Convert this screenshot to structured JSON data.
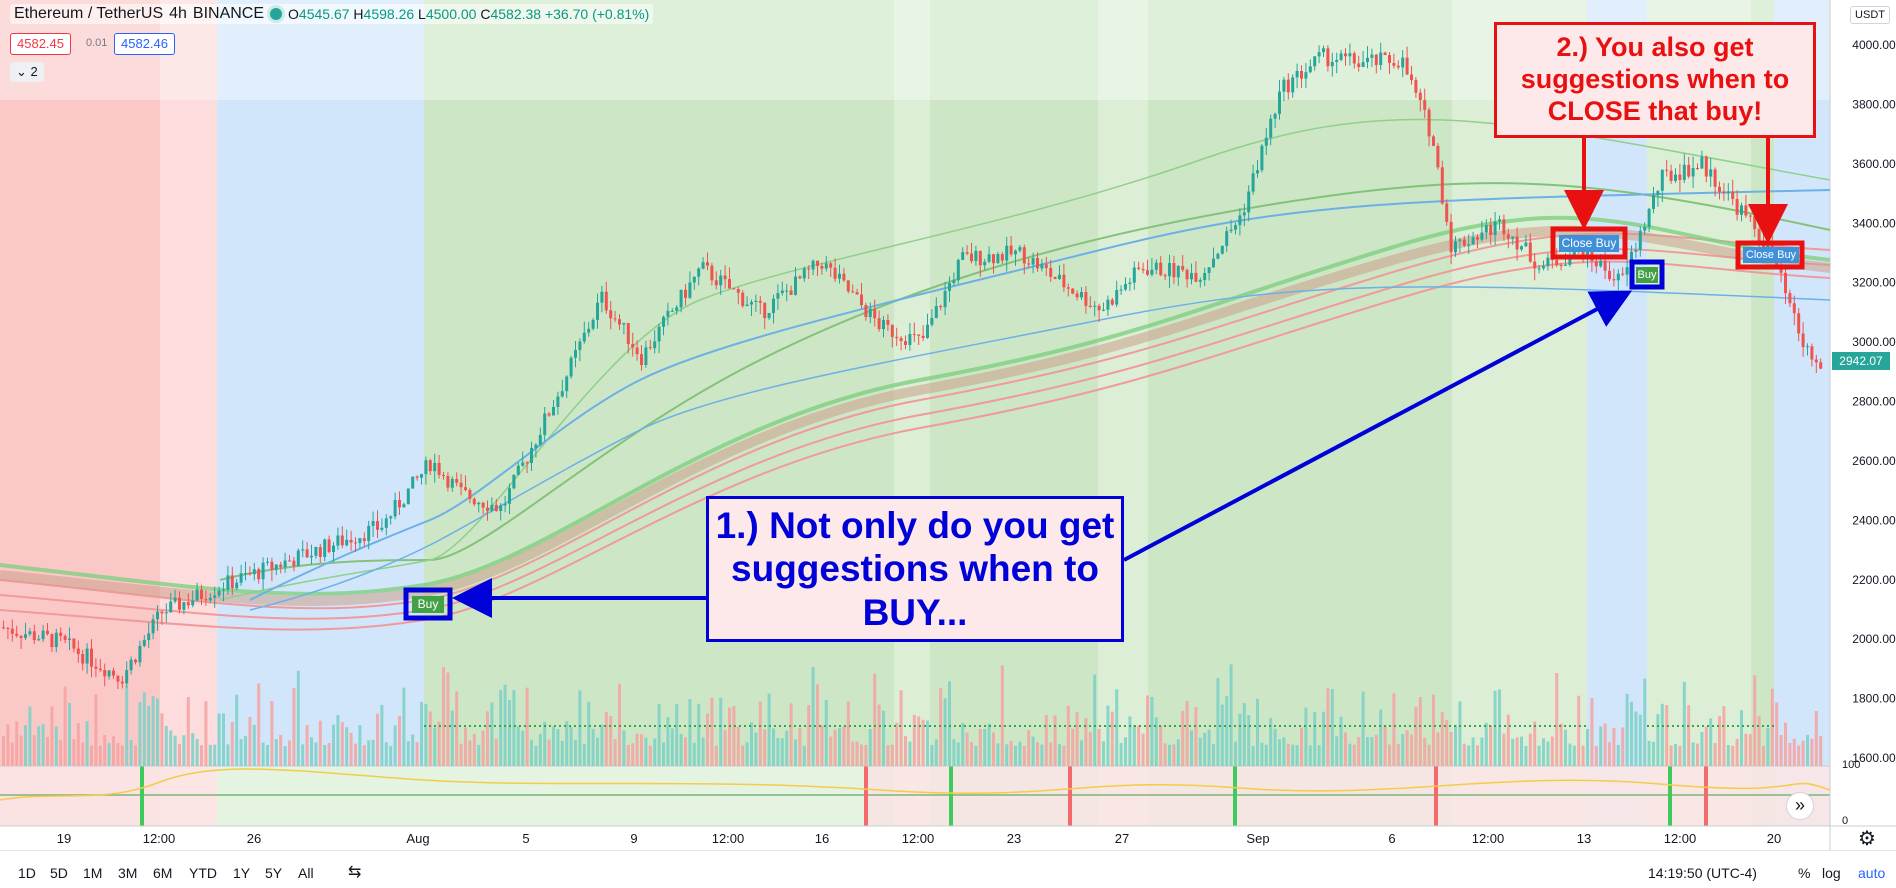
{
  "legend": {
    "symbol": "Ethereum / TetherUS",
    "interval": "4h",
    "exchange": "BINANCE",
    "open_label": "O",
    "open": "4545.67",
    "high_label": "H",
    "high": "4598.26",
    "low_label": "L",
    "low": "4500.00",
    "close_label": "C",
    "close": "4582.38",
    "change": "+36.70 (+0.81%)"
  },
  "trade": {
    "sell_price": "4582.45",
    "spread": "0.01",
    "buy_price": "4582.46"
  },
  "indicators_toggle": "⌄ 2",
  "price_axis": {
    "unit": "USDT",
    "ticks": [
      "4000.00",
      "3800.00",
      "3600.00",
      "3400.00",
      "3200.00",
      "3000.00",
      "2800.00",
      "2600.00",
      "2400.00",
      "2200.00",
      "2000.00",
      "1800.00",
      "1600.00"
    ],
    "last_price": "2942.07",
    "osc_ticks": [
      "100",
      "0"
    ]
  },
  "time_axis": [
    "19",
    "12:00",
    "26",
    "Aug",
    "5",
    "9",
    "12:00",
    "16",
    "12:00",
    "23",
    "27",
    "Sep",
    "6",
    "12:00",
    "13",
    "12:00",
    "20"
  ],
  "signals": {
    "buy": "Buy",
    "close_buy": "Close Buy"
  },
  "callouts": {
    "one": "1.) Not only do you get suggestions when to BUY...",
    "two": "2.) You also get suggestions when to CLOSE that buy!"
  },
  "bottom_bar": {
    "ranges": [
      "1D",
      "5D",
      "1M",
      "3M",
      "6M",
      "YTD",
      "1Y",
      "5Y",
      "All"
    ],
    "compare_icon": "compare-icon",
    "clock": "14:19:50 (UTC-4)",
    "percent": "%",
    "log": "log",
    "auto": "auto"
  },
  "colors": {
    "up": "#26a69a",
    "down": "#ef5350",
    "bull_zone": "#cfe8c8",
    "bear_zone": "#fbd0d0",
    "neutral_zone": "#d6e8fb",
    "callout_blue": "#0000d8",
    "callout_red": "#e81010"
  }
}
